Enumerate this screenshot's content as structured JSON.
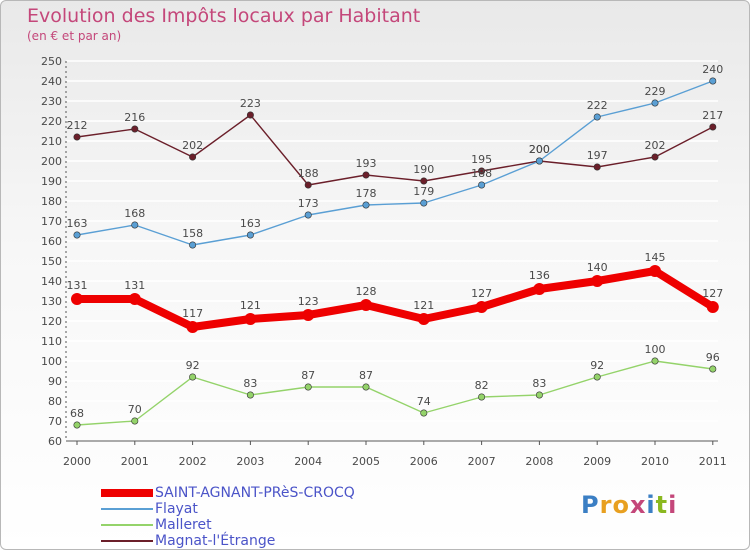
{
  "title": "Evolution des Impôts locaux par Habitant",
  "subtitle": "(en € et par an)",
  "logo": {
    "text": "Proxiti",
    "colors": [
      "#3b7fc4",
      "#e8a020",
      "#e8a020",
      "#c4477a",
      "#3b7fc4",
      "#8ab820",
      "#c4477a"
    ]
  },
  "colors": {
    "label": "#4a4a4a",
    "axis": "#555555",
    "grid": "#ffffff",
    "title": "#c4477a",
    "legend_text": "#4b54c8"
  },
  "chart_data": {
    "type": "line",
    "title": "Evolution des Impôts locaux par Habitant",
    "subtitle": "(en € et par an)",
    "xlabel": "",
    "ylabel": "",
    "ylim": [
      60,
      250
    ],
    "yticks": [
      60,
      70,
      80,
      90,
      100,
      110,
      120,
      130,
      140,
      150,
      160,
      170,
      180,
      190,
      200,
      210,
      220,
      230,
      240,
      250
    ],
    "categories": [
      "2000",
      "2001",
      "2002",
      "2003",
      "2004",
      "2005",
      "2006",
      "2007",
      "2008",
      "2009",
      "2010",
      "2011"
    ],
    "grid": true,
    "legend_position": "bottom-left",
    "series": [
      {
        "name": "Magnat-l'Étrange",
        "color": "#6b1f2a",
        "values": [
          212,
          216,
          202,
          223,
          188,
          193,
          190,
          195,
          200,
          197,
          202,
          217
        ]
      },
      {
        "name": "Flayat",
        "color": "#5a9fd4",
        "values": [
          163,
          168,
          158,
          163,
          173,
          178,
          179,
          188,
          200,
          222,
          229,
          240
        ]
      },
      {
        "name": "Malleret",
        "color": "#94d36a",
        "values": [
          68,
          70,
          92,
          83,
          87,
          87,
          74,
          82,
          83,
          92,
          100,
          96
        ]
      },
      {
        "name": "SAINT-AGNANT-PRèS-CROCQ",
        "color": "#ee0000",
        "values": [
          131,
          131,
          117,
          121,
          123,
          128,
          121,
          127,
          136,
          140,
          145,
          127
        ]
      }
    ],
    "legend": [
      {
        "name": "SAINT-AGNANT-PRèS-CROCQ",
        "color": "#ee0000"
      },
      {
        "name": "Flayat",
        "color": "#5a9fd4"
      },
      {
        "name": "Malleret",
        "color": "#94d36a"
      },
      {
        "name": "Magnat-l'Étrange",
        "color": "#6b1f2a"
      }
    ]
  }
}
